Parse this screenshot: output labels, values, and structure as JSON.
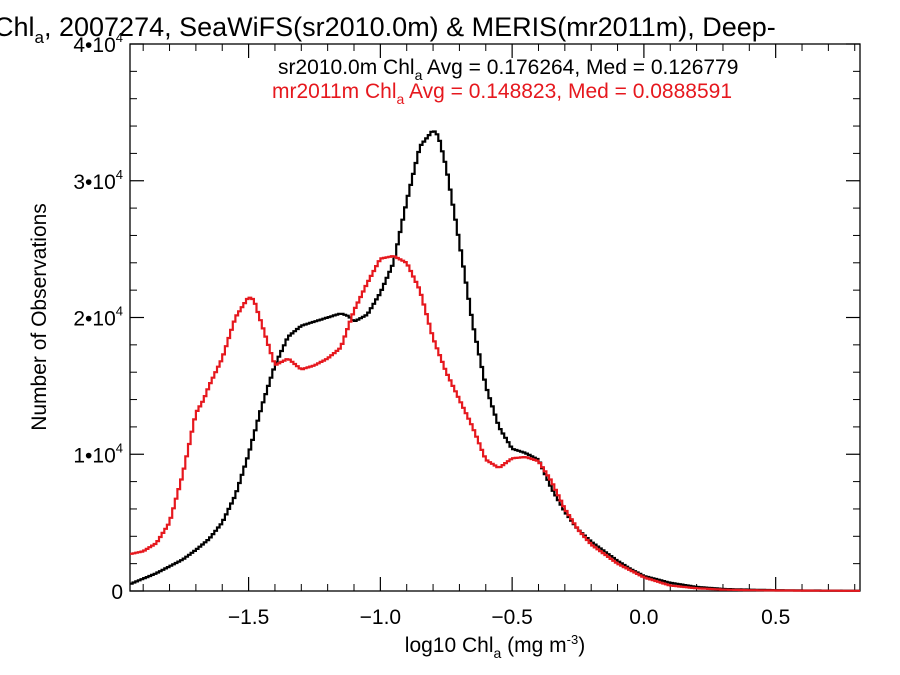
{
  "chart_data": {
    "type": "line",
    "title": {
      "prefix": "Chl",
      "prefix_sub": "a",
      "rest": ", 2007274, SeaWiFS(sr2010.0m) & MERIS(mr2011m), Deep-"
    },
    "xlabel": {
      "prefix": "log10 Chl",
      "sub": "a",
      "middle": " (mg m",
      "sup": "-3",
      "suffix": ")"
    },
    "ylabel": "Number of Observations",
    "xlim": [
      -1.95,
      0.82
    ],
    "ylim": [
      0,
      40000
    ],
    "x_ticks": [
      {
        "value": -1.5,
        "label": "−1.5"
      },
      {
        "value": -1.0,
        "label": "−1.0"
      },
      {
        "value": -0.5,
        "label": "−0.5"
      },
      {
        "value": 0.0,
        "label": "0.0"
      },
      {
        "value": 0.5,
        "label": "0.5"
      }
    ],
    "y_ticks": [
      {
        "value": 0,
        "base": "0",
        "exp": ""
      },
      {
        "value": 10000,
        "base": "1•10",
        "exp": "4"
      },
      {
        "value": 20000,
        "base": "2•10",
        "exp": "4"
      },
      {
        "value": 30000,
        "base": "3•10",
        "exp": "4"
      },
      {
        "value": 40000,
        "base": "4•10",
        "exp": "4"
      }
    ],
    "grid": false,
    "legend_position": "top-right",
    "series": [
      {
        "key": "sr2010",
        "color": "#000000",
        "legend": {
          "a": "sr2010.0m Chl",
          "sub": "a",
          "b": " Avg = 0.176264, Med = 0.126779"
        },
        "x": [
          -1.95,
          -1.9,
          -1.85,
          -1.8,
          -1.75,
          -1.7,
          -1.65,
          -1.6,
          -1.55,
          -1.5,
          -1.45,
          -1.4,
          -1.35,
          -1.3,
          -1.25,
          -1.2,
          -1.15,
          -1.12,
          -1.1,
          -1.05,
          -1.0,
          -0.95,
          -0.9,
          -0.85,
          -0.8,
          -0.78,
          -0.75,
          -0.7,
          -0.65,
          -0.6,
          -0.55,
          -0.5,
          -0.45,
          -0.4,
          -0.35,
          -0.3,
          -0.25,
          -0.2,
          -0.15,
          -0.1,
          -0.05,
          0.0,
          0.1,
          0.2,
          0.3,
          0.4,
          0.5,
          0.6,
          0.7,
          0.82
        ],
        "y": [
          500,
          900,
          1300,
          1800,
          2300,
          3000,
          3800,
          5000,
          7000,
          10000,
          13500,
          16500,
          18600,
          19400,
          19700,
          20000,
          20300,
          20100,
          19700,
          20200,
          21800,
          24000,
          28500,
          32500,
          33700,
          33300,
          31000,
          25500,
          19600,
          15000,
          12000,
          10400,
          10100,
          9600,
          7500,
          5800,
          4500,
          3600,
          2900,
          2200,
          1600,
          1100,
          600,
          300,
          150,
          100,
          60,
          40,
          30,
          20
        ]
      },
      {
        "key": "mr2011",
        "color": "#e6181e",
        "legend": {
          "a": "mr2011m Chl",
          "sub": "a",
          "b": " Avg = 0.148823, Med = 0.0888591"
        },
        "x": [
          -1.95,
          -1.9,
          -1.85,
          -1.8,
          -1.75,
          -1.7,
          -1.67,
          -1.65,
          -1.6,
          -1.55,
          -1.5,
          -1.48,
          -1.45,
          -1.4,
          -1.35,
          -1.3,
          -1.25,
          -1.2,
          -1.15,
          -1.1,
          -1.05,
          -1.0,
          -0.95,
          -0.9,
          -0.85,
          -0.8,
          -0.75,
          -0.7,
          -0.65,
          -0.6,
          -0.55,
          -0.5,
          -0.45,
          -0.4,
          -0.35,
          -0.3,
          -0.25,
          -0.2,
          -0.15,
          -0.1,
          -0.05,
          0.0,
          0.1,
          0.2,
          0.3,
          0.4,
          0.5,
          0.6,
          0.7,
          0.82
        ],
        "y": [
          2700,
          2900,
          3500,
          5000,
          8500,
          13000,
          14000,
          15000,
          17000,
          20000,
          21500,
          21300,
          19500,
          16500,
          17000,
          16200,
          16500,
          17000,
          17800,
          20500,
          22500,
          24300,
          24500,
          24000,
          22000,
          18500,
          16000,
          14000,
          12000,
          9600,
          9000,
          9700,
          9800,
          9500,
          8000,
          6000,
          4500,
          3400,
          2700,
          2000,
          1500,
          1000,
          400,
          200,
          100,
          60,
          40,
          30,
          20,
          15
        ]
      }
    ]
  }
}
